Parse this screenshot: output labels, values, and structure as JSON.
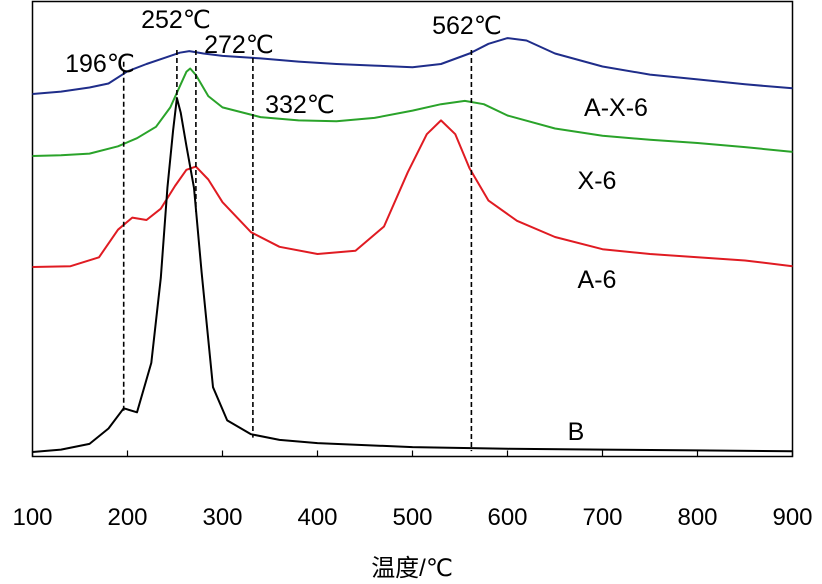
{
  "chart_data": {
    "type": "line",
    "title": "",
    "xlabel": "温度/℃",
    "ylabel": "",
    "xlim": [
      100,
      900
    ],
    "x_ticks": [
      100,
      200,
      300,
      400,
      500,
      600,
      700,
      800,
      900
    ],
    "x_tick_labels": [
      "100",
      "200",
      "300",
      "400",
      "500",
      "600",
      "700",
      "800",
      "900"
    ],
    "y_ticks_shown": false,
    "grid": false,
    "legend": "none; series labelled inline at right",
    "series": [
      {
        "name": "A-X-6",
        "color": "#1f2d8a",
        "x": [
          100,
          130,
          160,
          180,
          200,
          220,
          240,
          255,
          265,
          280,
          300,
          340,
          380,
          420,
          460,
          500,
          530,
          560,
          580,
          600,
          620,
          650,
          700,
          750,
          800,
          850,
          900
        ],
        "y": [
          0.0,
          0.003,
          0.008,
          0.013,
          0.028,
          0.037,
          0.045,
          0.051,
          0.053,
          0.05,
          0.047,
          0.044,
          0.04,
          0.037,
          0.035,
          0.033,
          0.037,
          0.05,
          0.062,
          0.069,
          0.066,
          0.05,
          0.034,
          0.024,
          0.018,
          0.012,
          0.007
        ]
      },
      {
        "name": "X-6",
        "color": "#2aa32a",
        "x": [
          100,
          130,
          160,
          190,
          210,
          230,
          245,
          255,
          262,
          266,
          272,
          285,
          300,
          340,
          380,
          420,
          460,
          500,
          530,
          555,
          575,
          600,
          650,
          700,
          750,
          800,
          850,
          900
        ],
        "y": [
          0.0,
          0.001,
          0.003,
          0.012,
          0.022,
          0.036,
          0.06,
          0.086,
          0.104,
          0.108,
          0.1,
          0.074,
          0.06,
          0.048,
          0.044,
          0.043,
          0.047,
          0.056,
          0.064,
          0.068,
          0.064,
          0.05,
          0.034,
          0.025,
          0.02,
          0.016,
          0.011,
          0.005
        ]
      },
      {
        "name": "A-6",
        "color": "#e01b22",
        "x": [
          100,
          140,
          170,
          190,
          205,
          220,
          235,
          250,
          262,
          272,
          285,
          300,
          330,
          360,
          400,
          440,
          470,
          495,
          515,
          530,
          545,
          560,
          580,
          610,
          650,
          700,
          750,
          800,
          850,
          900
        ],
        "y": [
          0.0,
          0.001,
          0.012,
          0.046,
          0.061,
          0.058,
          0.072,
          0.1,
          0.12,
          0.124,
          0.108,
          0.08,
          0.043,
          0.025,
          0.016,
          0.02,
          0.05,
          0.117,
          0.164,
          0.181,
          0.164,
          0.122,
          0.082,
          0.057,
          0.037,
          0.022,
          0.016,
          0.012,
          0.008,
          0.001
        ]
      },
      {
        "name": "B",
        "color": "#000000",
        "x": [
          100,
          130,
          160,
          180,
          196,
          210,
          225,
          235,
          242,
          248,
          252,
          256,
          262,
          270,
          278,
          290,
          305,
          330,
          360,
          400,
          500,
          600,
          700,
          800,
          900
        ],
        "y": [
          0.0,
          0.003,
          0.01,
          0.029,
          0.054,
          0.049,
          0.11,
          0.215,
          0.326,
          0.397,
          0.437,
          0.419,
          0.378,
          0.326,
          0.222,
          0.08,
          0.039,
          0.022,
          0.015,
          0.011,
          0.006,
          0.004,
          0.003,
          0.002,
          0.001
        ]
      }
    ],
    "vertical_markers": [
      {
        "x": 196,
        "label": "196℃"
      },
      {
        "x": 252,
        "label": "252℃"
      },
      {
        "x": 272,
        "label": "272℃"
      },
      {
        "x": 332,
        "label": "332℃"
      },
      {
        "x": 562,
        "label": "562℃"
      }
    ]
  }
}
